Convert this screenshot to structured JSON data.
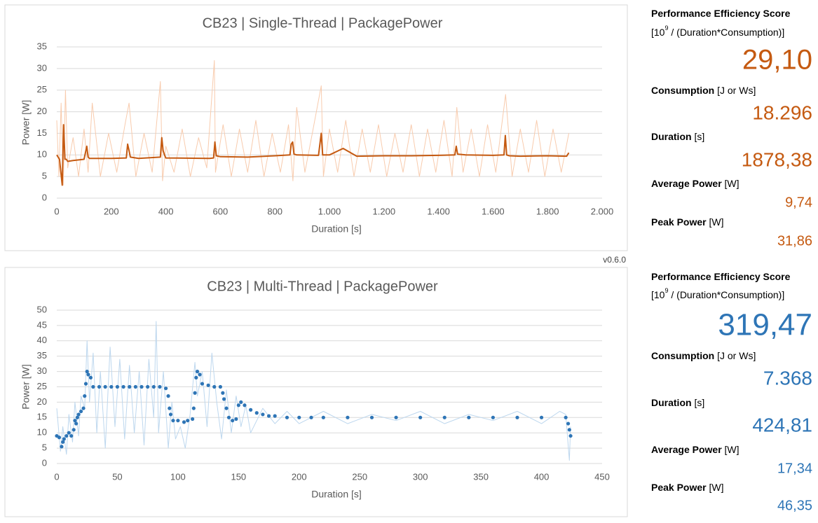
{
  "chart_data": [
    {
      "type": "line",
      "title": "CB23 | Single-Thread | PackagePower",
      "x_label": "Duration [s]",
      "y_label": "Power [W]",
      "xlim": [
        0,
        2000
      ],
      "ylim": [
        0,
        35
      ],
      "xticks": [
        0,
        200,
        400,
        600,
        800,
        {
          "value": 1000,
          "label": "1.000"
        },
        {
          "value": 1200,
          "label": "1.200"
        },
        {
          "value": 1400,
          "label": "1.400"
        },
        {
          "value": 1600,
          "label": "1.600"
        },
        {
          "value": 1800,
          "label": "1.800"
        },
        {
          "value": 2000,
          "label": "2.000"
        }
      ],
      "yticks": [
        0,
        5,
        10,
        15,
        20,
        25,
        30,
        35
      ],
      "grid": true,
      "series": [
        {
          "color": "#f8cbad",
          "style": "line",
          "x": [
            0,
            8,
            16,
            24,
            32,
            40,
            60,
            80,
            100,
            115,
            130,
            160,
            190,
            220,
            250,
            265,
            290,
            320,
            350,
            380,
            388,
            400,
            430,
            460,
            490,
            520,
            550,
            578,
            582,
            610,
            640,
            670,
            700,
            730,
            760,
            790,
            820,
            850,
            866,
            880,
            910,
            940,
            970,
            978,
            1000,
            1030,
            1060,
            1090,
            1120,
            1150,
            1180,
            1210,
            1240,
            1270,
            1300,
            1330,
            1360,
            1390,
            1420,
            1450,
            1467,
            1490,
            1520,
            1550,
            1580,
            1610,
            1646,
            1670,
            1700,
            1730,
            1760,
            1790,
            1820,
            1850,
            1878
          ],
          "values": [
            18,
            5,
            22,
            3,
            25,
            7,
            14,
            5,
            16,
            6,
            22,
            5,
            15,
            6,
            17,
            22,
            5,
            15,
            6,
            27,
            4,
            12,
            6,
            16,
            5,
            14,
            7,
            31.86,
            6,
            17,
            5,
            16,
            6,
            18,
            5,
            15,
            6,
            17,
            4,
            21,
            6,
            16,
            26,
            5,
            16,
            6,
            18,
            5,
            16,
            6,
            17,
            5,
            15,
            6,
            17,
            5,
            16,
            6,
            18,
            5,
            21,
            6,
            16,
            5,
            17,
            6,
            24,
            5,
            16,
            6,
            18,
            5,
            16,
            6,
            15
          ]
        },
        {
          "color": "#c55a11",
          "style": "line",
          "x": [
            0,
            10,
            20,
            25,
            30,
            35,
            40,
            60,
            100,
            110,
            115,
            120,
            200,
            255,
            260,
            265,
            270,
            300,
            380,
            385,
            390,
            395,
            400,
            560,
            575,
            580,
            585,
            600,
            700,
            800,
            855,
            860,
            865,
            870,
            880,
            960,
            970,
            975,
            980,
            1000,
            1050,
            1100,
            1200,
            1300,
            1400,
            1460,
            1465,
            1470,
            1500,
            1600,
            1640,
            1645,
            1650,
            1660,
            1700,
            1800,
            1870,
            1878
          ],
          "values": [
            10,
            9,
            3,
            17,
            9,
            9,
            8.5,
            8.7,
            9,
            12,
            9.5,
            9.2,
            9.2,
            9.3,
            12.5,
            11,
            9.5,
            9.2,
            9.5,
            14,
            11,
            10,
            9.3,
            9.2,
            9.3,
            13,
            9.8,
            9.6,
            9.5,
            9.8,
            10,
            12.5,
            13,
            10.2,
            10,
            9.9,
            15,
            10,
            10,
            10,
            11.5,
            9.7,
            9.8,
            9.8,
            9.9,
            10,
            12,
            10.2,
            10,
            9.9,
            10,
            14.5,
            10,
            9.8,
            9.7,
            9.8,
            9.7,
            10.5
          ]
        }
      ]
    },
    {
      "type": "line",
      "title": "CB23 | Multi-Thread | PackagePower",
      "x_label": "Duration [s]",
      "y_label": "Power [W]",
      "xlim": [
        0,
        450
      ],
      "ylim": [
        0,
        50
      ],
      "xticks": [
        0,
        50,
        100,
        150,
        200,
        250,
        300,
        350,
        400,
        450
      ],
      "yticks": [
        0,
        5,
        10,
        15,
        20,
        25,
        30,
        35,
        40,
        45,
        50
      ],
      "grid": true,
      "series": [
        {
          "color": "#bdd7ee",
          "style": "line",
          "x": [
            0,
            3,
            5,
            8,
            10,
            13,
            15,
            18,
            20,
            23,
            25,
            27,
            30,
            33,
            36,
            40,
            44,
            48,
            52,
            56,
            60,
            64,
            68,
            72,
            76,
            80,
            82,
            84,
            88,
            92,
            95,
            98,
            102,
            106,
            110,
            114,
            116,
            120,
            124,
            128,
            132,
            136,
            140,
            144,
            148,
            152,
            156,
            160,
            170,
            180,
            190,
            200,
            220,
            240,
            260,
            280,
            300,
            320,
            340,
            360,
            380,
            400,
            415,
            420,
            423,
            424
          ],
          "values": [
            18,
            4,
            12,
            3,
            16,
            7,
            20,
            9,
            22,
            18,
            40,
            20,
            36,
            10,
            30,
            5,
            38,
            12,
            34,
            8,
            32,
            10,
            30,
            6,
            34,
            15,
            46.35,
            10,
            30,
            5,
            20,
            8,
            12,
            5,
            16,
            33,
            22,
            30,
            12,
            36,
            20,
            8,
            24,
            10,
            22,
            12,
            19,
            10,
            18,
            13,
            17,
            13,
            17,
            13,
            16,
            14,
            17,
            13,
            16,
            14,
            17,
            13,
            17,
            16,
            1,
            12
          ]
        },
        {
          "color": "#2e75b6",
          "style": "markers",
          "x": [
            0,
            2,
            4,
            5,
            6,
            8,
            10,
            12,
            14,
            15,
            16,
            17,
            18,
            20,
            22,
            23,
            24,
            25,
            26,
            28,
            30,
            35,
            40,
            45,
            50,
            55,
            60,
            65,
            70,
            75,
            80,
            85,
            90,
            92,
            93,
            94,
            96,
            100,
            105,
            108,
            112,
            113,
            114,
            115,
            116,
            118,
            120,
            125,
            130,
            135,
            137,
            138,
            140,
            142,
            145,
            148,
            150,
            152,
            155,
            160,
            165,
            170,
            175,
            180,
            190,
            200,
            210,
            220,
            240,
            260,
            280,
            300,
            320,
            340,
            360,
            380,
            400,
            420,
            422,
            423,
            424
          ],
          "values": [
            9,
            8.5,
            5.5,
            7,
            8,
            9,
            10,
            9,
            11,
            14,
            13,
            15,
            16,
            17,
            18,
            22,
            26,
            30,
            29,
            28,
            25,
            25,
            25,
            25,
            25,
            25,
            25,
            25,
            25,
            25,
            25,
            25,
            24.5,
            22,
            18,
            16,
            14,
            14,
            13.5,
            14,
            14.5,
            18,
            23,
            28,
            30,
            29,
            26,
            25.5,
            25,
            25,
            23,
            21,
            18,
            15,
            14,
            14.5,
            19,
            20,
            19,
            17.5,
            16.5,
            16,
            15.5,
            15.5,
            15,
            15,
            15,
            15,
            15,
            15,
            15,
            15,
            15,
            15,
            15,
            15,
            15,
            15,
            13,
            11,
            9
          ]
        }
      ]
    }
  ],
  "version": "v0.6.0",
  "panels": [
    {
      "color": "#c55a11",
      "items": [
        {
          "label": "Performance Efficiency Score",
          "unit_base": "[10",
          "unit_exp": "9",
          "unit_rest": " / (Duration*Consumption)]",
          "value": "29,10"
        },
        {
          "label": "Consumption",
          "unit": " [J or Ws]",
          "value": "18.296"
        },
        {
          "label": "Duration",
          "unit": " [s]",
          "value": "1878,38"
        },
        {
          "label": "Average Power",
          "unit": " [W]",
          "value": "9,74"
        },
        {
          "label": "Peak Power",
          "unit": " [W]",
          "value": "31,86"
        }
      ]
    },
    {
      "color": "#2e75b6",
      "items": [
        {
          "label": "Performance Efficiency Score",
          "unit_base": "[10",
          "unit_exp": "9",
          "unit_rest": " / (Duration*Consumption)]",
          "value": "319,47"
        },
        {
          "label": "Consumption",
          "unit": " [J or Ws]",
          "value": "7.368"
        },
        {
          "label": "Duration",
          "unit": " [s]",
          "value": "424,81"
        },
        {
          "label": "Average Power",
          "unit": " [W]",
          "value": "17,34"
        },
        {
          "label": "Peak Power",
          "unit": " [W]",
          "value": "46,35"
        }
      ]
    }
  ]
}
